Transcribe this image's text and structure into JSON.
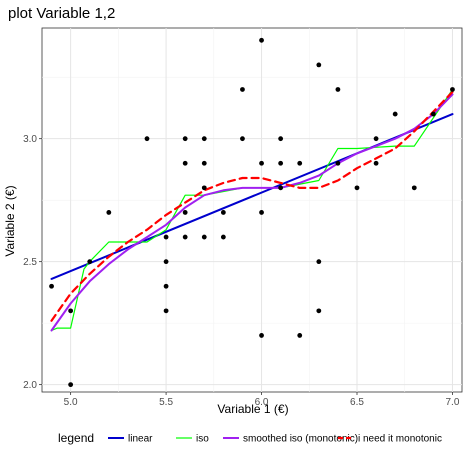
{
  "chart_data": {
    "type": "scatter",
    "title": "plot Variable 1,2",
    "xlabel": "Variable 1 (€)",
    "ylabel": "Variable 2 (€)",
    "xlim": [
      4.85,
      7.05
    ],
    "ylim": [
      1.97,
      3.45
    ],
    "x_ticks": [
      5.0,
      5.5,
      6.0,
      6.5,
      7.0
    ],
    "x_tick_labels": [
      "5.0",
      "5.5",
      "6.0",
      "6.5",
      "7.0"
    ],
    "y_ticks": [
      2.0,
      2.5,
      3.0
    ],
    "y_tick_labels": [
      "2.0",
      "2.5",
      "3.0"
    ],
    "grid": true,
    "legend_title": "legend",
    "legend_position": "bottom",
    "points": [
      [
        4.9,
        2.4
      ],
      [
        5.0,
        2.0
      ],
      [
        5.0,
        2.3
      ],
      [
        5.1,
        2.5
      ],
      [
        5.2,
        2.7
      ],
      [
        5.4,
        3.0
      ],
      [
        5.5,
        2.6
      ],
      [
        5.5,
        2.5
      ],
      [
        5.5,
        2.4
      ],
      [
        5.5,
        2.3
      ],
      [
        5.6,
        3.0
      ],
      [
        5.6,
        2.9
      ],
      [
        5.6,
        2.7
      ],
      [
        5.6,
        2.6
      ],
      [
        5.7,
        3.0
      ],
      [
        5.7,
        2.9
      ],
      [
        5.7,
        2.8
      ],
      [
        5.7,
        2.6
      ],
      [
        5.8,
        2.7
      ],
      [
        5.8,
        2.6
      ],
      [
        5.9,
        3.2
      ],
      [
        5.9,
        3.0
      ],
      [
        6.0,
        3.4
      ],
      [
        6.0,
        2.9
      ],
      [
        6.0,
        2.7
      ],
      [
        6.0,
        2.2
      ],
      [
        6.1,
        3.0
      ],
      [
        6.1,
        2.9
      ],
      [
        6.1,
        2.8
      ],
      [
        6.2,
        2.9
      ],
      [
        6.2,
        2.2
      ],
      [
        6.3,
        3.3
      ],
      [
        6.3,
        2.5
      ],
      [
        6.3,
        2.3
      ],
      [
        6.4,
        3.2
      ],
      [
        6.4,
        2.9
      ],
      [
        6.5,
        2.8
      ],
      [
        6.6,
        3.0
      ],
      [
        6.6,
        2.9
      ],
      [
        6.7,
        3.1
      ],
      [
        6.8,
        2.8
      ],
      [
        6.9,
        3.1
      ],
      [
        7.0,
        3.2
      ]
    ],
    "series": [
      {
        "name": "linear",
        "style": "solid",
        "color": "#0000cd",
        "x": [
          4.9,
          7.0
        ],
        "y": [
          2.43,
          3.1
        ]
      },
      {
        "name": "iso",
        "style": "solid",
        "color": "#00ff00",
        "x": [
          4.9,
          4.93,
          5.0,
          5.07,
          5.1,
          5.2,
          5.4,
          5.5,
          5.6,
          5.7,
          5.9,
          6.1,
          6.3,
          6.4,
          6.5,
          6.7,
          6.8,
          7.0
        ],
        "y": [
          2.22,
          2.23,
          2.23,
          2.47,
          2.5,
          2.58,
          2.58,
          2.63,
          2.77,
          2.77,
          2.8,
          2.8,
          2.83,
          2.96,
          2.96,
          2.97,
          2.97,
          3.2
        ]
      },
      {
        "name": "smoothed iso (monotonic)",
        "style": "solid",
        "color": "#a020f0",
        "x": [
          4.9,
          5.0,
          5.1,
          5.2,
          5.3,
          5.4,
          5.5,
          5.6,
          5.7,
          5.8,
          5.9,
          6.0,
          6.1,
          6.2,
          6.3,
          6.4,
          6.5,
          6.6,
          6.7,
          6.8,
          6.9,
          7.0
        ],
        "y": [
          2.22,
          2.33,
          2.42,
          2.49,
          2.55,
          2.6,
          2.65,
          2.72,
          2.77,
          2.79,
          2.8,
          2.8,
          2.8,
          2.82,
          2.85,
          2.9,
          2.94,
          2.97,
          3.0,
          3.04,
          3.1,
          3.18
        ]
      },
      {
        "name": "i need it monotonic",
        "style": "dashed",
        "color": "#ff0000",
        "x": [
          4.9,
          5.0,
          5.1,
          5.2,
          5.3,
          5.4,
          5.5,
          5.6,
          5.7,
          5.8,
          5.9,
          6.0,
          6.1,
          6.2,
          6.3,
          6.4,
          6.5,
          6.6,
          6.7,
          6.8,
          6.9,
          7.0
        ],
        "y": [
          2.26,
          2.37,
          2.45,
          2.52,
          2.58,
          2.63,
          2.69,
          2.74,
          2.79,
          2.82,
          2.84,
          2.84,
          2.82,
          2.8,
          2.8,
          2.83,
          2.88,
          2.92,
          2.96,
          3.03,
          3.11,
          3.19
        ]
      }
    ]
  }
}
